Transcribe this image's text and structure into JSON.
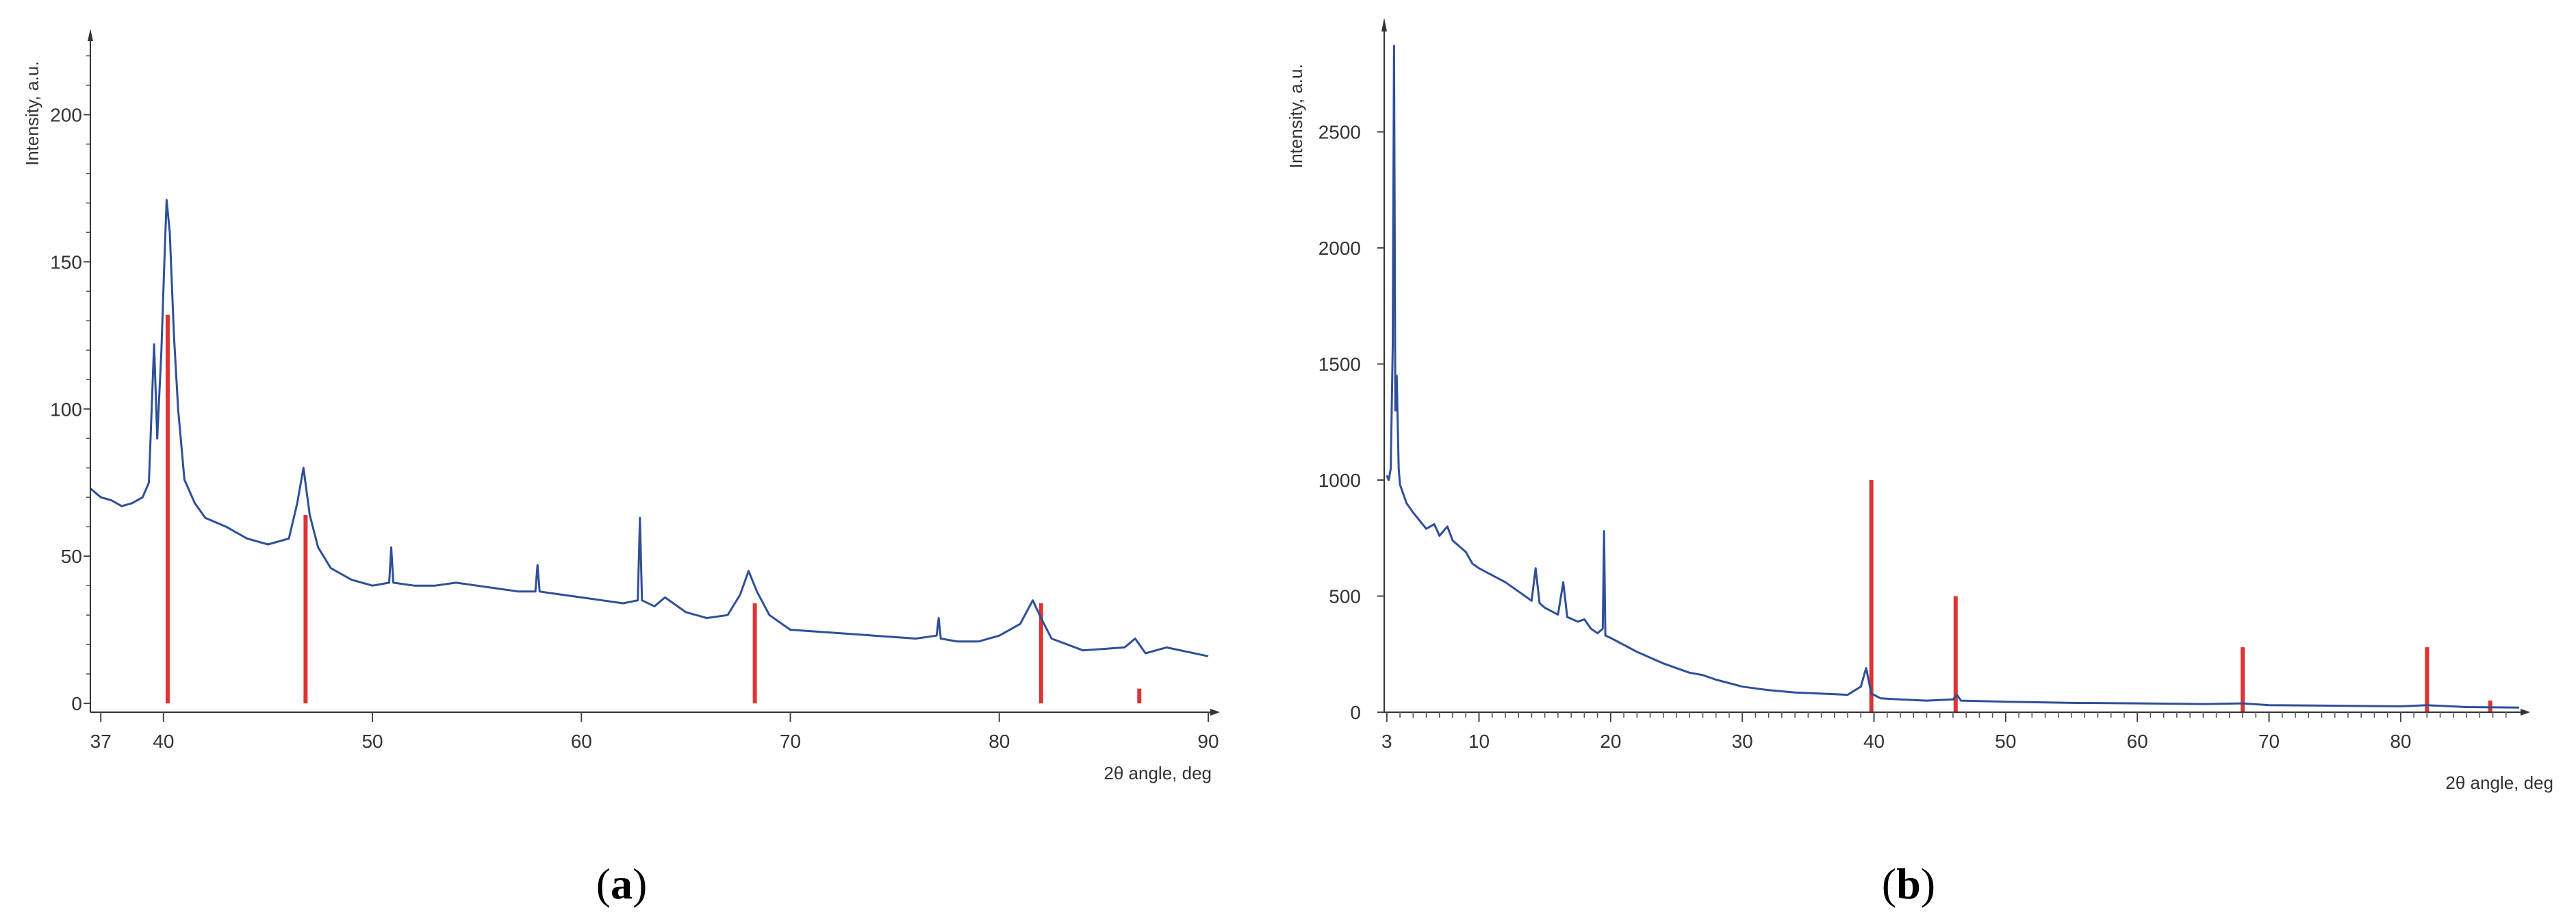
{
  "chart_data": [
    {
      "type": "line",
      "panel_label": "a",
      "ylabel": "Intensity, a.u.",
      "xlabel": "2θ angle, deg",
      "xlim": [
        36.5,
        90
      ],
      "ylim": [
        -3,
        225
      ],
      "x_ticks": [
        37,
        40,
        50,
        60,
        70,
        80,
        90
      ],
      "y_ticks": [
        0,
        50,
        100,
        150,
        200
      ],
      "colors": {
        "trace": "#2f4f98",
        "reference": "#dd3434"
      },
      "series": [
        {
          "name": "measured pattern",
          "points": [
            [
              36.5,
              73
            ],
            [
              37.0,
              70
            ],
            [
              37.5,
              69
            ],
            [
              38.0,
              67
            ],
            [
              38.5,
              68
            ],
            [
              39.0,
              70
            ],
            [
              39.3,
              75
            ],
            [
              39.55,
              122
            ],
            [
              39.7,
              90
            ],
            [
              39.9,
              120
            ],
            [
              40.05,
              152
            ],
            [
              40.15,
              171
            ],
            [
              40.3,
              160
            ],
            [
              40.5,
              125
            ],
            [
              40.7,
              100
            ],
            [
              41.0,
              76
            ],
            [
              41.5,
              68
            ],
            [
              42.0,
              63
            ],
            [
              43.0,
              60
            ],
            [
              44.0,
              56
            ],
            [
              45.0,
              54
            ],
            [
              46.0,
              56
            ],
            [
              46.4,
              68
            ],
            [
              46.7,
              80
            ],
            [
              47.0,
              64
            ],
            [
              47.4,
              53
            ],
            [
              48.0,
              46
            ],
            [
              49.0,
              42
            ],
            [
              50.0,
              40
            ],
            [
              50.8,
              41
            ],
            [
              50.9,
              53
            ],
            [
              51.0,
              41
            ],
            [
              52.0,
              40
            ],
            [
              53.0,
              40
            ],
            [
              54.0,
              41
            ],
            [
              55.0,
              40
            ],
            [
              56.0,
              39
            ],
            [
              57.0,
              38
            ],
            [
              57.8,
              38
            ],
            [
              57.9,
              47
            ],
            [
              58.0,
              38
            ],
            [
              59.0,
              37
            ],
            [
              60.0,
              36
            ],
            [
              61.0,
              35
            ],
            [
              62.0,
              34
            ],
            [
              62.7,
              35
            ],
            [
              62.8,
              63
            ],
            [
              62.9,
              35
            ],
            [
              63.5,
              33
            ],
            [
              64.0,
              36
            ],
            [
              65.0,
              31
            ],
            [
              66.0,
              29
            ],
            [
              67.0,
              30
            ],
            [
              67.6,
              37
            ],
            [
              68.0,
              45
            ],
            [
              68.4,
              38
            ],
            [
              69.0,
              30
            ],
            [
              70.0,
              25
            ],
            [
              72.0,
              24
            ],
            [
              74.0,
              23
            ],
            [
              76.0,
              22
            ],
            [
              77.0,
              23
            ],
            [
              77.1,
              29
            ],
            [
              77.2,
              22
            ],
            [
              78.0,
              21
            ],
            [
              79.0,
              21
            ],
            [
              80.0,
              23
            ],
            [
              81.0,
              27
            ],
            [
              81.6,
              35
            ],
            [
              82.0,
              29
            ],
            [
              82.5,
              22
            ],
            [
              84.0,
              18
            ],
            [
              86.0,
              19
            ],
            [
              86.5,
              22
            ],
            [
              87.0,
              17
            ],
            [
              88.0,
              19
            ],
            [
              90.0,
              16
            ]
          ]
        },
        {
          "name": "reference lines",
          "x": [
            40.2,
            46.8,
            68.3,
            82.0,
            86.7
          ],
          "values": [
            132,
            64,
            34,
            34,
            5
          ]
        }
      ]
    },
    {
      "type": "line",
      "panel_label": "b",
      "ylabel": "Intensity, a.u.",
      "xlabel": "2θ angle, deg",
      "xlim": [
        2.8,
        89
      ],
      "ylim": [
        0,
        2950
      ],
      "x_ticks": [
        3,
        10,
        20,
        30,
        40,
        50,
        60,
        70,
        80
      ],
      "y_ticks": [
        0,
        500,
        1000,
        1500,
        2000,
        2500
      ],
      "colors": {
        "trace": "#2f4f98",
        "reference": "#dd3434"
      },
      "series": [
        {
          "name": "measured pattern",
          "points": [
            [
              3.0,
              1020
            ],
            [
              3.15,
              1000
            ],
            [
              3.3,
              1050
            ],
            [
              3.45,
              1580
            ],
            [
              3.55,
              2870
            ],
            [
              3.65,
              1300
            ],
            [
              3.75,
              1450
            ],
            [
              3.9,
              1050
            ],
            [
              4.0,
              980
            ],
            [
              4.5,
              900
            ],
            [
              5.0,
              860
            ],
            [
              6.0,
              790
            ],
            [
              6.6,
              810
            ],
            [
              7.0,
              760
            ],
            [
              7.6,
              800
            ],
            [
              8.0,
              740
            ],
            [
              9.0,
              690
            ],
            [
              9.5,
              640
            ],
            [
              10.0,
              620
            ],
            [
              12.0,
              560
            ],
            [
              13.0,
              520
            ],
            [
              14.0,
              480
            ],
            [
              14.3,
              620
            ],
            [
              14.6,
              470
            ],
            [
              15.0,
              450
            ],
            [
              16.0,
              420
            ],
            [
              16.4,
              560
            ],
            [
              16.7,
              410
            ],
            [
              17.5,
              390
            ],
            [
              18.0,
              400
            ],
            [
              18.5,
              360
            ],
            [
              19.0,
              340
            ],
            [
              19.4,
              360
            ],
            [
              19.5,
              780
            ],
            [
              19.6,
              330
            ],
            [
              20.0,
              320
            ],
            [
              22.0,
              260
            ],
            [
              24.0,
              210
            ],
            [
              26.0,
              170
            ],
            [
              27.0,
              160
            ],
            [
              28.0,
              140
            ],
            [
              30.0,
              110
            ],
            [
              32.0,
              95
            ],
            [
              34.0,
              85
            ],
            [
              36.0,
              80
            ],
            [
              38.0,
              75
            ],
            [
              39.0,
              110
            ],
            [
              39.4,
              190
            ],
            [
              39.8,
              80
            ],
            [
              40.5,
              60
            ],
            [
              42.0,
              55
            ],
            [
              44.0,
              50
            ],
            [
              46.0,
              55
            ],
            [
              46.3,
              75
            ],
            [
              46.6,
              50
            ],
            [
              50.0,
              45
            ],
            [
              55.0,
              40
            ],
            [
              60.0,
              38
            ],
            [
              65.0,
              35
            ],
            [
              68.0,
              38
            ],
            [
              70.0,
              30
            ],
            [
              75.0,
              28
            ],
            [
              80.0,
              25
            ],
            [
              82.0,
              30
            ],
            [
              85.0,
              22
            ],
            [
              89.0,
              20
            ]
          ]
        },
        {
          "name": "reference lines",
          "x": [
            39.8,
            46.2,
            68.0,
            82.0,
            86.8
          ],
          "values": [
            1000,
            500,
            280,
            280,
            50
          ]
        }
      ]
    }
  ],
  "captions": {
    "a": {
      "open": "(",
      "letter": "a",
      "close": ")"
    },
    "b": {
      "open": "(",
      "letter": "b",
      "close": ")"
    }
  }
}
